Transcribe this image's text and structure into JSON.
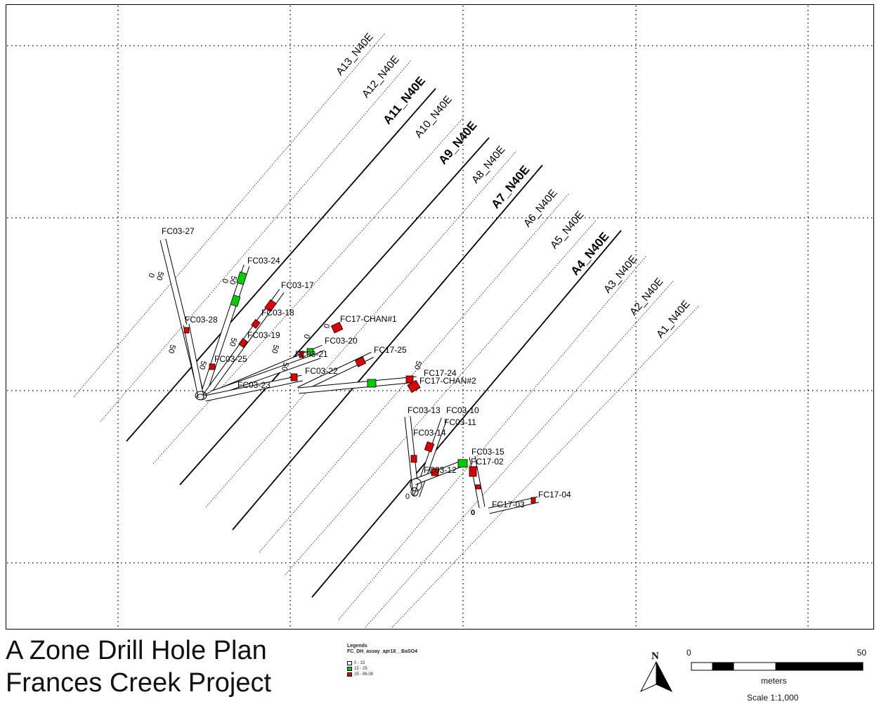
{
  "title": {
    "line1": "A Zone Drill Hole Plan",
    "line2": "Frances Creek Project"
  },
  "legend": {
    "heading": "Legends",
    "layer": "FC_DH_assay_apr18__BaSO4",
    "items": [
      {
        "label": "0 - 15",
        "color": "#ffffff"
      },
      {
        "label": "15 - 25",
        "color": "#00cc00"
      },
      {
        "label": "25 - 86.08",
        "color": "#dd0000"
      }
    ]
  },
  "north": {
    "label": "N"
  },
  "scale": {
    "start": "0",
    "end": "50",
    "units": "meters",
    "ratio": "Scale 1:1,000"
  },
  "colors": {
    "low": "#ffffff",
    "mid": "#00cc00",
    "high": "#dd0000",
    "line": "#000000"
  },
  "sections": [
    {
      "label": "A13_N40E",
      "bold": false
    },
    {
      "label": "A12_N40E",
      "bold": false
    },
    {
      "label": "A11_N40E",
      "bold": true
    },
    {
      "label": "A10_N40E",
      "bold": false
    },
    {
      "label": "A9_N40E",
      "bold": true
    },
    {
      "label": "A8_N40E",
      "bold": false
    },
    {
      "label": "A7_N40E",
      "bold": true
    },
    {
      "label": "A6_N40E",
      "bold": false
    },
    {
      "label": "A5_N40E",
      "bold": false
    },
    {
      "label": "A4_N40E",
      "bold": true
    },
    {
      "label": "A3_N40E",
      "bold": false
    },
    {
      "label": "A2_N40E",
      "bold": false
    },
    {
      "label": "A1_N40E",
      "bold": false
    }
  ],
  "holes": [
    "FC03-27",
    "FC03-24",
    "FC03-17",
    "FC03-18",
    "FC03-28",
    "FC03-19",
    "FC17-CHAN#1",
    "FC03-20",
    "FC17-25",
    "FC03-25",
    "FC03-21",
    "FC03-22",
    "FC03-23",
    "FC17-24",
    "FC17-CHAN#2",
    "FC03-13",
    "FC03-10",
    "FC03-11",
    "FC03-14",
    "FC03-15",
    "FC17-02",
    "FC03-12",
    "FC17-04",
    "FC17-03"
  ],
  "depth_marks": [
    "0",
    "50"
  ]
}
